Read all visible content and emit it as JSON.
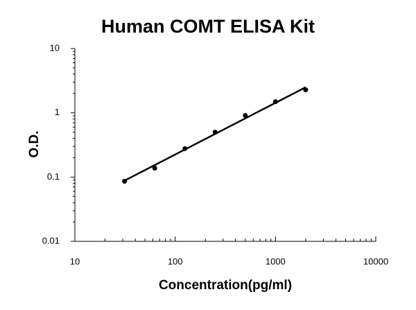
{
  "chart_data": {
    "type": "scatter",
    "title": "Human COMT ELISA Kit",
    "x_label": "Concentration(pg/ml)",
    "y_label": "O.D.",
    "x": [
      31.25,
      62.5,
      125,
      250,
      500,
      1000,
      2000
    ],
    "values": [
      0.086,
      0.138,
      0.277,
      0.5,
      0.91,
      1.49,
      2.28
    ],
    "color": "#000000",
    "trendline": {
      "x": [
        31.25,
        2000
      ],
      "values": [
        0.088,
        2.5
      ]
    },
    "xlim": [
      10,
      10000
    ],
    "ylim": [
      0.01,
      10
    ],
    "xticks": [
      10,
      100,
      1000,
      10000
    ],
    "yticks": [
      0.01,
      0.1,
      1,
      10
    ],
    "x_log": true,
    "y_log": true,
    "grid": false
  }
}
